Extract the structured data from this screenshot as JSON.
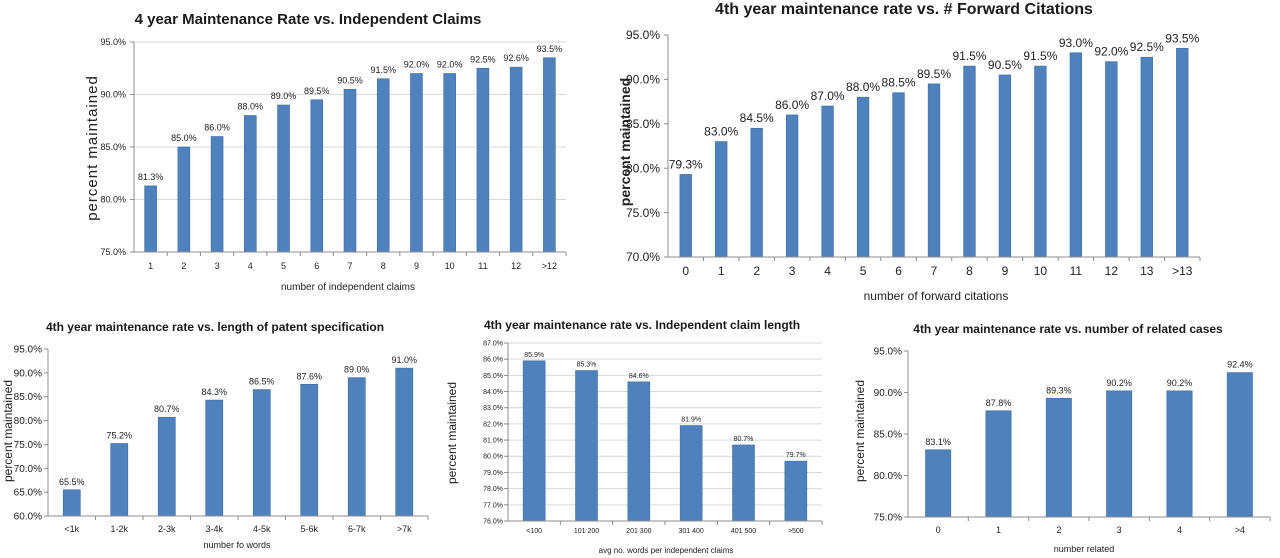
{
  "chart_data": [
    {
      "type": "bar",
      "title": "4 year Maintenance Rate vs. Independent Claims",
      "xlabel": "number of independent claims",
      "ylabel": "percent maintained",
      "ylim": [
        75.0,
        95.0
      ],
      "yticks": [
        "75.0%",
        "80.0%",
        "85.0%",
        "90.0%",
        "95.0%"
      ],
      "categories": [
        "1",
        "2",
        "3",
        "4",
        "5",
        "6",
        "7",
        "8",
        "9",
        "10",
        "11",
        "12",
        ">12"
      ],
      "values": [
        81.3,
        85.0,
        86.0,
        88.0,
        89.0,
        89.5,
        90.5,
        91.5,
        92.0,
        92.0,
        92.5,
        92.6,
        93.5
      ],
      "labels": [
        "81.3%",
        "85.0%",
        "86.0%",
        "88.0%",
        "89.0%",
        "89.5%",
        "90.5%",
        "91.5%",
        "92.0%",
        "92.0%",
        "92.5%",
        "92.6%",
        "93.5%"
      ],
      "grid": true
    },
    {
      "type": "bar",
      "title": "4th year maintenance rate vs. # Forward Citations",
      "xlabel": "number of forward citations",
      "ylabel": "percent maintained",
      "ylim": [
        70.0,
        95.0
      ],
      "yticks": [
        "70.0%",
        "75.0%",
        "80.0%",
        "85.0%",
        "90.0%",
        "95.0%"
      ],
      "categories": [
        "0",
        "1",
        "2",
        "3",
        "4",
        "5",
        "6",
        "7",
        "8",
        "9",
        "10",
        "11",
        "12",
        "13",
        ">13"
      ],
      "values": [
        79.3,
        83.0,
        84.5,
        86.0,
        87.0,
        88.0,
        88.5,
        89.5,
        91.5,
        90.5,
        91.5,
        93.0,
        92.0,
        92.5,
        93.5
      ],
      "labels": [
        "79.3%",
        "83.0%",
        "84.5%",
        "86.0%",
        "87.0%",
        "88.0%",
        "88.5%",
        "89.5%",
        "91.5%",
        "90.5%",
        "91.5%",
        "93.0%",
        "92.0%",
        "92.5%",
        "93.5%"
      ],
      "grid": false
    },
    {
      "type": "bar",
      "title": "4th year maintenance rate vs. length of patent specification",
      "xlabel": "number fo words",
      "ylabel": "percent maintained",
      "ylim": [
        60.0,
        95.0
      ],
      "yticks": [
        "60.0%",
        "65.0%",
        "70.0%",
        "75.0%",
        "80.0%",
        "85.0%",
        "90.0%",
        "95.0%"
      ],
      "categories": [
        "<1k",
        "1-2k",
        "2-3k",
        "3-4k",
        "4-5k",
        "5-6k",
        "6-7k",
        ">7k"
      ],
      "values": [
        65.5,
        75.2,
        80.7,
        84.3,
        86.5,
        87.6,
        89.0,
        91.0
      ],
      "labels": [
        "65.5%",
        "75.2%",
        "80.7%",
        "84.3%",
        "86.5%",
        "87.6%",
        "89.0%",
        "91.0%"
      ],
      "grid": false
    },
    {
      "type": "bar",
      "title": "4th year maintenance rate vs.  Independent claim length",
      "xlabel": "avg no. words per independent claims",
      "ylabel": "percent maintained",
      "ylim": [
        76.0,
        87.0
      ],
      "yticks": [
        "76.0%",
        "77.0%",
        "78.0%",
        "79.0%",
        "80.0%",
        "81.0%",
        "82.0%",
        "83.0%",
        "84.0%",
        "85.0%",
        "86.0%",
        "87.0%"
      ],
      "categories": [
        "<100",
        "101 200",
        "201 300",
        "301 400",
        "401 500",
        ">500"
      ],
      "values": [
        85.9,
        85.3,
        84.6,
        81.9,
        80.7,
        79.7
      ],
      "labels": [
        "85.9%",
        "85.3%",
        "84.6%",
        "81.9%",
        "80.7%",
        "79.7%"
      ],
      "grid": true
    },
    {
      "type": "bar",
      "title": "4th year maintenance rate vs. number of related cases",
      "xlabel": "number related",
      "ylabel": "percent maintained",
      "ylim": [
        75.0,
        95.0
      ],
      "yticks": [
        "75.0%",
        "80.0%",
        "85.0%",
        "90.0%",
        "95.0%"
      ],
      "categories": [
        "0",
        "1",
        "2",
        "3",
        "4",
        ">4"
      ],
      "values": [
        83.1,
        87.8,
        89.3,
        90.2,
        90.2,
        92.4
      ],
      "labels": [
        "83.1%",
        "87.8%",
        "89.3%",
        "90.2%",
        "90.2%",
        "92.4%"
      ],
      "grid": false
    }
  ]
}
